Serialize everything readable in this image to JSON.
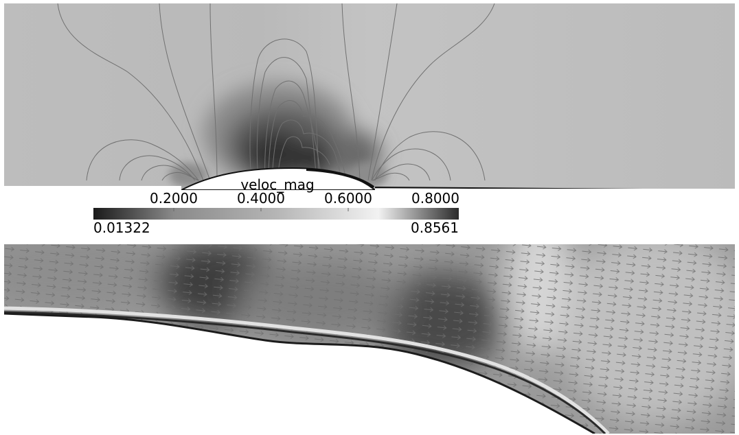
{
  "colorbar": {
    "title": "veloc_mag",
    "ticks": [
      "0.2000",
      "0.4000",
      "0.6000",
      "0.8000"
    ],
    "tick_values": [
      0.2,
      0.4,
      0.6,
      0.8
    ],
    "min": "0.01322",
    "max": "0.8561",
    "range": [
      0.01322,
      0.8561
    ],
    "colormap": "grayscale"
  },
  "panels": {
    "top": "contour plot of velocity magnitude around a bump",
    "bottom": "zoomed velocity vector (glyph) field near the wall"
  },
  "colors": {
    "background": "#ffffff",
    "field_gray": "#b7b7b7",
    "contour_line": "#6f6f6f",
    "dark_region": "#2b2b2b"
  }
}
